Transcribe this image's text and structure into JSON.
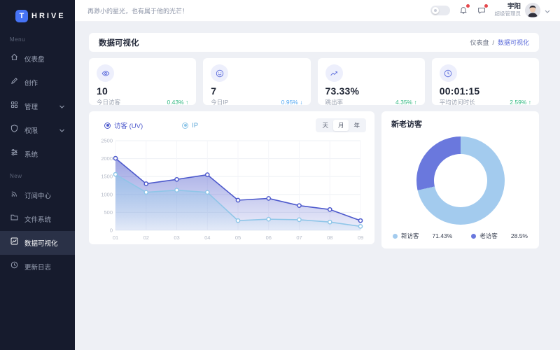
{
  "sidebar": {
    "logo_letter": "T",
    "logo_text": "HRIVE",
    "sections": [
      {
        "label": "Menu",
        "items": [
          {
            "label": "仪表盘",
            "icon": "home-icon"
          },
          {
            "label": "创作",
            "icon": "pencil-icon"
          },
          {
            "label": "管理",
            "icon": "grid-icon",
            "expandable": true
          },
          {
            "label": "权限",
            "icon": "shield-icon",
            "expandable": true
          },
          {
            "label": "系统",
            "icon": "sliders-icon"
          }
        ]
      },
      {
        "label": "New",
        "items": [
          {
            "label": "订阅中心",
            "icon": "rss-icon"
          },
          {
            "label": "文件系统",
            "icon": "folder-icon"
          },
          {
            "label": "数据可视化",
            "icon": "chart-icon",
            "active": true
          },
          {
            "label": "更新日志",
            "icon": "refresh-clock-icon"
          }
        ]
      }
    ]
  },
  "header": {
    "motto": "再渺小的星光，也有属于他的光芒！",
    "icons": [
      "toggle-switch",
      "bell-icon",
      "message-icon"
    ],
    "user": {
      "name": "宇阳",
      "role": "超级管理员"
    }
  },
  "page": {
    "title": "数据可视化",
    "breadcrumb": {
      "parent": "仪表盘",
      "separator": "/",
      "current": "数据可视化"
    }
  },
  "stats": [
    {
      "icon": "eye-icon",
      "value": "10",
      "label": "今日访客",
      "delta": "0.43%",
      "arrow": "↑",
      "delta_color": "#33b983"
    },
    {
      "icon": "smiley-icon",
      "value": "7",
      "label": "今日IP",
      "delta": "0.95%",
      "arrow": "↓",
      "delta_color": "#54a8f2"
    },
    {
      "icon": "trend-icon",
      "value": "73.33%",
      "label": "跳出率",
      "delta": "4.35%",
      "arrow": "↑",
      "delta_color": "#33b983"
    },
    {
      "icon": "clock-icon",
      "value": "00:01:15",
      "label": "平均访问时长",
      "delta": "2.59%",
      "arrow": "↑",
      "delta_color": "#33b983"
    }
  ],
  "chart_data": [
    {
      "type": "area",
      "title": "访客趋势",
      "x": [
        "01",
        "02",
        "03",
        "04",
        "05",
        "06",
        "07",
        "08",
        "09"
      ],
      "series": [
        {
          "name": "访客 (UV)",
          "color": "#4d59cc",
          "values": [
            2010,
            1300,
            1420,
            1550,
            840,
            890,
            690,
            580,
            270
          ]
        },
        {
          "name": "IP",
          "color": "#8fc6e8",
          "values": [
            1560,
            1060,
            1120,
            1060,
            270,
            310,
            295,
            230,
            110
          ]
        }
      ],
      "ylim": [
        0,
        2500
      ],
      "yticks": [
        0,
        500,
        1000,
        1500,
        2000,
        2500
      ],
      "grid": true,
      "legend_position": "top",
      "tabs": [
        "天",
        "月",
        "年"
      ],
      "active_tab": "月"
    },
    {
      "type": "pie",
      "title": "新老访客",
      "slices": [
        {
          "label": "新访客",
          "value": 71.43,
          "display": "71.43%",
          "color": "#a3cbee"
        },
        {
          "label": "老访客",
          "value": 28.5,
          "display": "28.5%",
          "color": "#6a78dd"
        }
      ],
      "legend_position": "bottom"
    }
  ]
}
